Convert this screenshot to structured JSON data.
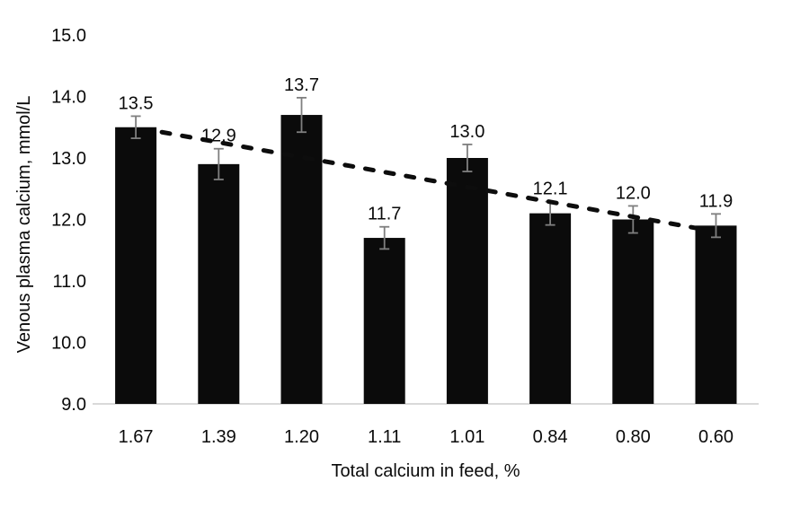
{
  "chart_data": {
    "type": "bar",
    "title": "",
    "xlabel": "Total calcium in feed, %",
    "ylabel": "Venous plasma calcium, mmol/L",
    "categories": [
      "1.67",
      "1.39",
      "1.20",
      "1.11",
      "1.01",
      "0.84",
      "0.80",
      "0.60"
    ],
    "values": [
      13.5,
      12.9,
      13.7,
      11.7,
      13.0,
      12.1,
      12.0,
      11.9
    ],
    "data_labels": [
      "13.5",
      "12.9",
      "13.7",
      "11.7",
      "13.0",
      "12.1",
      "12.0",
      "11.9"
    ],
    "error_bars": [
      0.18,
      0.25,
      0.28,
      0.18,
      0.22,
      0.19,
      0.22,
      0.19
    ],
    "yticks": [
      "15.0",
      "14.0",
      "13.0",
      "12.0",
      "11.0",
      "10.0",
      "9.0"
    ],
    "ylim": [
      9.0,
      15.0
    ],
    "grid": false,
    "legend": "none",
    "trendline": {
      "type": "linear",
      "style": "bold-dashed",
      "start_value": 13.42,
      "end_value": 11.82
    },
    "colors": {
      "bar": "#0b0b0b",
      "error_bar": "#7f7f7f",
      "baseline": "#d9d9d9",
      "trendline": "#0d0d0d",
      "text": "#0a0a0a"
    }
  }
}
